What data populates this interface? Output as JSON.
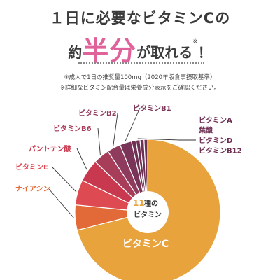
{
  "header": {
    "title": "１日に必要なビタミンCの",
    "headline_prefix": "約",
    "headline_emphasis": "半分",
    "headline_suffix": "が取れる",
    "headline_mark": "※",
    "headline_end": "！"
  },
  "notes": [
    "※成人で1日の推奨量100mg（2020年版食事摂取基準）",
    "※詳細なビタミン配合量は栄養成分表示をご確認ください。"
  ],
  "center_label": {
    "number": "11",
    "unit": "種の",
    "line2": "ビタミン"
  },
  "chart_data": {
    "type": "pie",
    "title": "",
    "slices": [
      {
        "label": "ビタミンC",
        "value": 71.0,
        "color": "#e8a33d"
      },
      {
        "label": "ナイアシン",
        "value": 5.6,
        "color": "#e26a38"
      },
      {
        "label": "ビタミンE",
        "value": 5.6,
        "color": "#dd4a52"
      },
      {
        "label": "パントテン酸",
        "value": 5.0,
        "color": "#c8394f"
      },
      {
        "label": "ビタミンB6",
        "value": 3.6,
        "color": "#a83d5a"
      },
      {
        "label": "ビタミンB2",
        "value": 3.0,
        "color": "#8f3b5e"
      },
      {
        "label": "ビタミンB1",
        "value": 2.6,
        "color": "#7a3458"
      },
      {
        "label": "ビタミンA",
        "value": 1.0,
        "color": "#6e3154"
      },
      {
        "label": "葉酸",
        "value": 0.9,
        "color": "#6e3154"
      },
      {
        "label": "ビタミンD",
        "value": 0.9,
        "color": "#6e3154"
      },
      {
        "label": "ビタミンB12",
        "value": 0.8,
        "color": "#6e3154"
      }
    ],
    "label_colors": {
      "ナイアシン": "#e26a38",
      "ビタミンE": "#dd4a52",
      "パントテン酸": "#c8394f",
      "ビタミンB6": "#a83d5a",
      "ビタミンB2": "#8f3b5e",
      "ビタミンB1": "#7a3458",
      "ビタミンA": "#6e3154",
      "葉酸": "#6e3154",
      "ビタミンD": "#6e3154",
      "ビタミンB12": "#6e3154"
    },
    "center_number_color": "#e8a33d",
    "legend": "none"
  }
}
